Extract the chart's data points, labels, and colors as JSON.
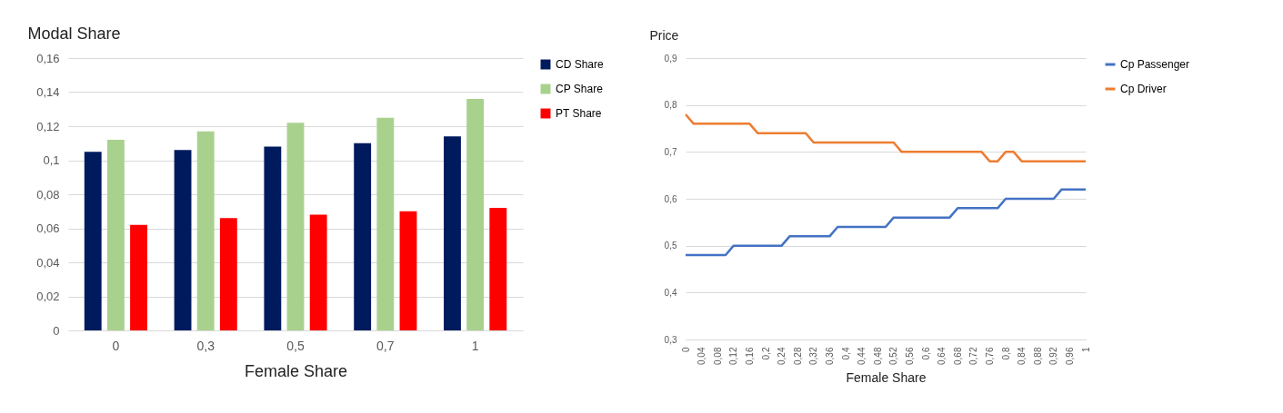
{
  "chart_data": [
    {
      "type": "bar",
      "ylabel": "Modal Share",
      "xlabel": "Female Share",
      "categories": [
        "0",
        "0,3",
        "0,5",
        "0,7",
        "1"
      ],
      "series": [
        {
          "name": "CD Share",
          "color": "#001a5e",
          "values": [
            0.105,
            0.106,
            0.108,
            0.11,
            0.114
          ]
        },
        {
          "name": "CP Share",
          "color": "#a9d18e",
          "values": [
            0.112,
            0.117,
            0.122,
            0.125,
            0.136
          ]
        },
        {
          "name": "PT Share",
          "color": "#ff0000",
          "values": [
            0.062,
            0.066,
            0.068,
            0.07,
            0.072
          ]
        }
      ],
      "ylim": [
        0,
        0.16
      ],
      "yticks": [
        0,
        {
          "value": 0.02,
          "label": "0,02"
        },
        {
          "value": 0.04,
          "label": "0,04"
        },
        {
          "value": 0.06,
          "label": "0,06"
        },
        {
          "value": 0.08,
          "label": "0,08"
        },
        {
          "value": 0.1,
          "label": "0,1"
        },
        {
          "value": 0.12,
          "label": "0,12"
        },
        {
          "value": 0.14,
          "label": "0,14"
        },
        {
          "value": 0.16,
          "label": "0,16"
        }
      ],
      "grid": "y",
      "legend": "right"
    },
    {
      "type": "line",
      "ylabel": "Price",
      "xlabel": "Female Share",
      "x": [
        0,
        0.02,
        0.04,
        0.06,
        0.08,
        0.1,
        0.12,
        0.14,
        0.16,
        0.18,
        0.2,
        0.22,
        0.24,
        0.26,
        0.28,
        0.3,
        0.32,
        0.34,
        0.36,
        0.38,
        0.4,
        0.42,
        0.44,
        0.46,
        0.48,
        0.5,
        0.52,
        0.54,
        0.56,
        0.58,
        0.6,
        0.62,
        0.64,
        0.66,
        0.68,
        0.7,
        0.72,
        0.74,
        0.76,
        0.78,
        0.8,
        0.82,
        0.84,
        0.86,
        0.88,
        0.9,
        0.92,
        0.94,
        0.96,
        0.98,
        1
      ],
      "series": [
        {
          "name": "Cp Passenger",
          "color": "#4472c4",
          "values": [
            0.48,
            0.48,
            0.48,
            0.48,
            0.48,
            0.48,
            0.5,
            0.5,
            0.5,
            0.5,
            0.5,
            0.5,
            0.5,
            0.52,
            0.52,
            0.52,
            0.52,
            0.52,
            0.52,
            0.54,
            0.54,
            0.54,
            0.54,
            0.54,
            0.54,
            0.54,
            0.56,
            0.56,
            0.56,
            0.56,
            0.56,
            0.56,
            0.56,
            0.56,
            0.58,
            0.58,
            0.58,
            0.58,
            0.58,
            0.58,
            0.6,
            0.6,
            0.6,
            0.6,
            0.6,
            0.6,
            0.6,
            0.62,
            0.62,
            0.62,
            0.62
          ]
        },
        {
          "name": "Cp Driver",
          "color": "#ed7d31",
          "values": [
            0.78,
            0.76,
            0.76,
            0.76,
            0.76,
            0.76,
            0.76,
            0.76,
            0.76,
            0.74,
            0.74,
            0.74,
            0.74,
            0.74,
            0.74,
            0.74,
            0.72,
            0.72,
            0.72,
            0.72,
            0.72,
            0.72,
            0.72,
            0.72,
            0.72,
            0.72,
            0.72,
            0.7,
            0.7,
            0.7,
            0.7,
            0.7,
            0.7,
            0.7,
            0.7,
            0.7,
            0.7,
            0.7,
            0.68,
            0.68,
            0.7,
            0.7,
            0.68,
            0.68,
            0.68,
            0.68,
            0.68,
            0.68,
            0.68,
            0.68,
            0.68
          ]
        }
      ],
      "xlim": [
        0,
        1
      ],
      "xticks": [
        0,
        {
          "value": 0.04,
          "label": "0,04"
        },
        {
          "value": 0.08,
          "label": "0,08"
        },
        {
          "value": 0.12,
          "label": "0,12"
        },
        {
          "value": 0.16,
          "label": "0,16"
        },
        {
          "value": 0.2,
          "label": "0,2"
        },
        {
          "value": 0.24,
          "label": "0,24"
        },
        {
          "value": 0.28,
          "label": "0,28"
        },
        {
          "value": 0.32,
          "label": "0,32"
        },
        {
          "value": 0.36,
          "label": "0,36"
        },
        {
          "value": 0.4,
          "label": "0,4"
        },
        {
          "value": 0.44,
          "label": "0,44"
        },
        {
          "value": 0.48,
          "label": "0,48"
        },
        {
          "value": 0.52,
          "label": "0,52"
        },
        {
          "value": 0.56,
          "label": "0,56"
        },
        {
          "value": 0.6,
          "label": "0,6"
        },
        {
          "value": 0.64,
          "label": "0,64"
        },
        {
          "value": 0.68,
          "label": "0,68"
        },
        {
          "value": 0.72,
          "label": "0,72"
        },
        {
          "value": 0.76,
          "label": "0,76"
        },
        {
          "value": 0.8,
          "label": "0,8"
        },
        {
          "value": 0.84,
          "label": "0,84"
        },
        {
          "value": 0.88,
          "label": "0,88"
        },
        {
          "value": 0.92,
          "label": "0,92"
        },
        {
          "value": 0.96,
          "label": "0,96"
        },
        1
      ],
      "ylim": [
        0.3,
        0.9
      ],
      "yticks": [
        {
          "value": 0.3,
          "label": "0,3"
        },
        {
          "value": 0.4,
          "label": "0,4"
        },
        {
          "value": 0.5,
          "label": "0,5"
        },
        {
          "value": 0.6,
          "label": "0,6"
        },
        {
          "value": 0.7,
          "label": "0,7"
        },
        {
          "value": 0.8,
          "label": "0,8"
        },
        {
          "value": 0.9,
          "label": "0,9"
        }
      ],
      "grid": "y",
      "legend": "right",
      "line_style": "solid",
      "marker": "none"
    }
  ]
}
